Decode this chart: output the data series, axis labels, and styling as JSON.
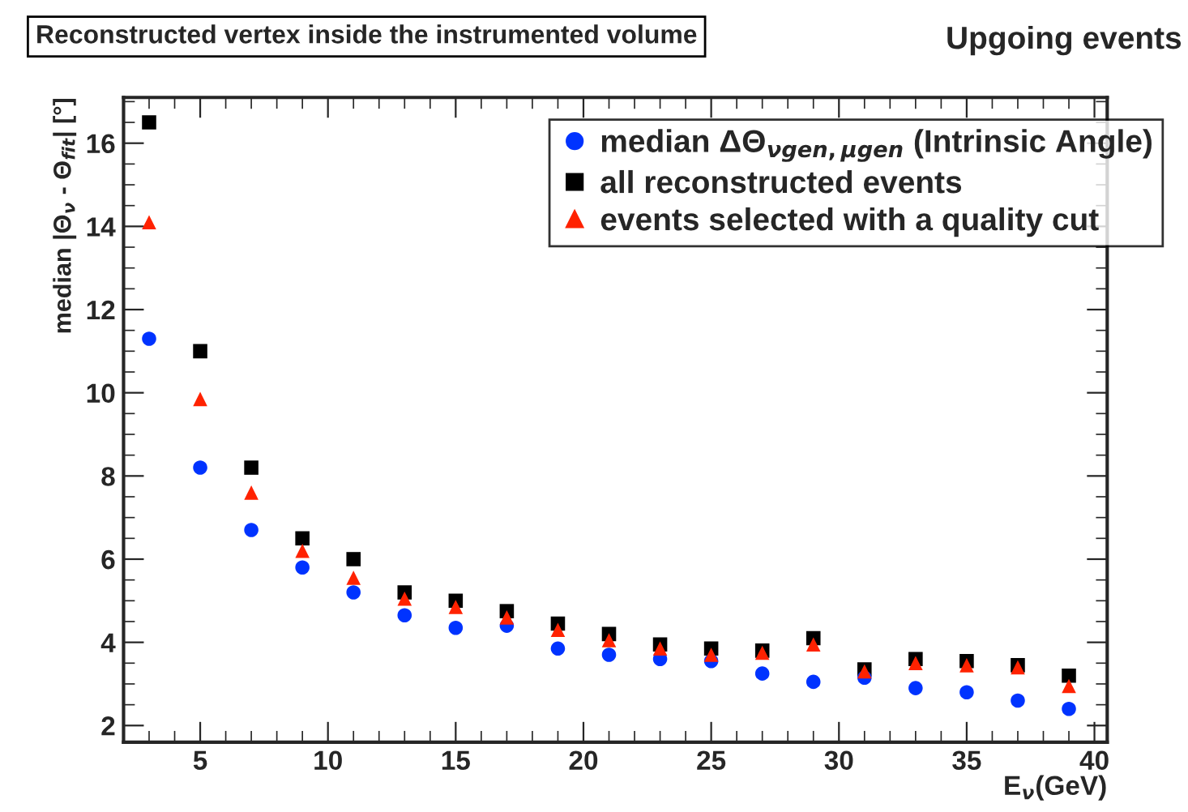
{
  "chart_data": {
    "type": "scatter",
    "title": "Reconstructed vertex inside the instrumented volume",
    "subtitle": "Upgoing events",
    "xlabel": "E$_{ν}$(GeV)",
    "ylabel": "median |Θ$_{ν}$ - Θ$_{fit}$| [°]",
    "x": [
      3,
      5,
      7,
      9,
      11,
      13,
      15,
      17,
      19,
      21,
      23,
      25,
      27,
      29,
      31,
      33,
      35,
      37,
      39
    ],
    "series": [
      {
        "name": "median ΔΘ$_{νgen,μgen}$ (Intrinsic Angle)",
        "color": "#0033ff",
        "marker": "circle",
        "values": [
          11.3,
          8.2,
          6.7,
          5.8,
          5.2,
          4.65,
          4.35,
          4.4,
          3.85,
          3.7,
          3.6,
          3.55,
          3.25,
          3.05,
          3.15,
          2.9,
          2.8,
          2.6,
          2.4
        ]
      },
      {
        "name": "all reconstructed events",
        "color": "#000000",
        "marker": "square",
        "values": [
          16.5,
          11.0,
          8.2,
          6.5,
          6.0,
          5.2,
          5.0,
          4.75,
          4.45,
          4.2,
          3.95,
          3.85,
          3.8,
          4.1,
          3.35,
          3.6,
          3.55,
          3.45,
          3.2
        ]
      },
      {
        "name": "events selected with a quality cut",
        "color": "#ff2200",
        "marker": "triangle",
        "values": [
          14.1,
          9.85,
          7.6,
          6.2,
          5.55,
          5.05,
          4.85,
          4.6,
          4.3,
          4.05,
          3.85,
          3.7,
          3.75,
          3.95,
          3.3,
          3.5,
          3.45,
          3.4,
          2.95
        ]
      }
    ],
    "xlim": [
      2,
      40.5
    ],
    "xticks": [
      5,
      10,
      15,
      20,
      25,
      30,
      35,
      40
    ],
    "ylim": [
      1.6,
      17.1
    ],
    "yticks": [
      2,
      4,
      6,
      8,
      10,
      12,
      14,
      16
    ],
    "grid": false,
    "legend": "top right"
  }
}
